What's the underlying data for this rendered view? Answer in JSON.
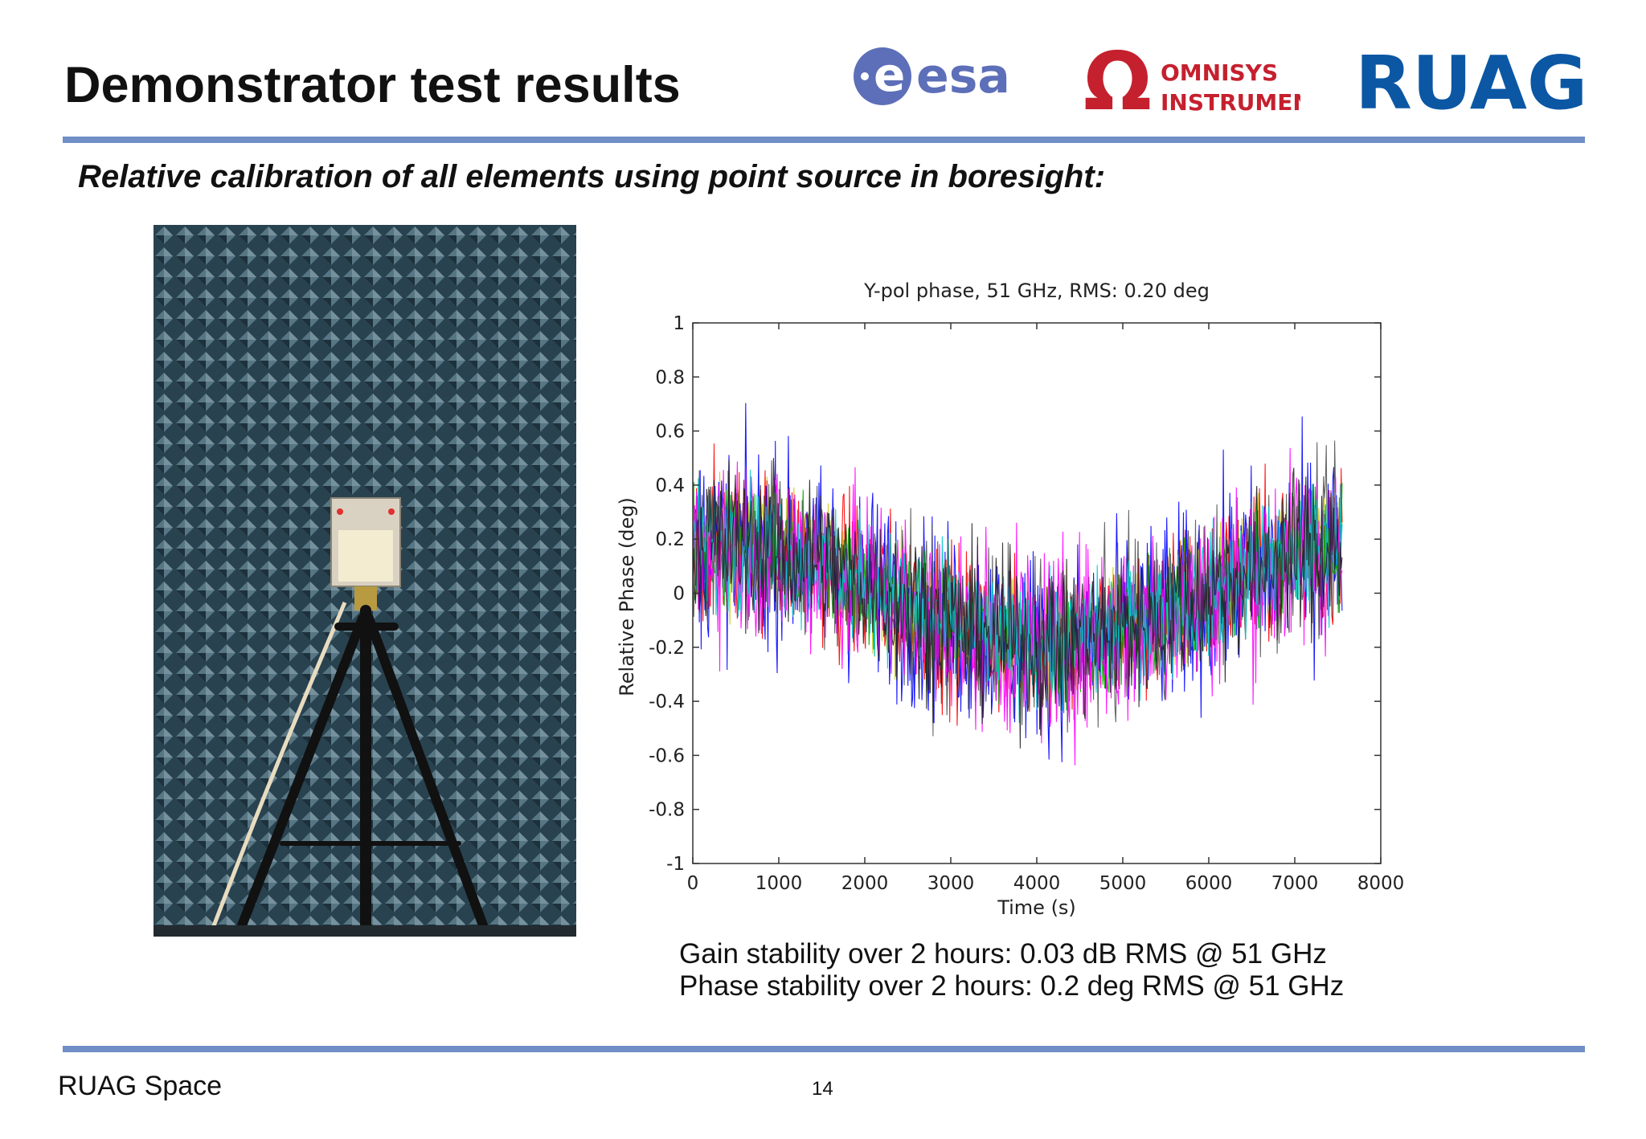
{
  "slide": {
    "title": "Demonstrator test results",
    "subtitle": "Relative calibration of all elements using point source in boresight:",
    "stats": [
      "Gain stability over 2 hours: 0.03 dB RMS @ 51 GHz",
      "Phase stability over 2 hours: 0.2 deg RMS @ 51 GHz"
    ],
    "footer": "RUAG Space",
    "page_number": "14"
  },
  "logos": {
    "esa": "esa",
    "omnisys_line1": "OMNISYS",
    "omnisys_line2": "INSTRUMENTS",
    "ruag": "RUAG"
  },
  "colors": {
    "rule": "#6f8fc6",
    "esa": "#5d6fb8",
    "omnisys": "#c5202e",
    "ruag": "#0b57a4"
  },
  "chart_data": {
    "type": "line",
    "title": "Y-pol phase, 51 GHz, RMS: 0.20 deg",
    "xlabel": "Time (s)",
    "ylabel": "Relative Phase (deg)",
    "xlim": [
      0,
      8000
    ],
    "ylim": [
      -1,
      1
    ],
    "xticks": [
      "0",
      "1000",
      "2000",
      "3000",
      "4000",
      "5000",
      "6000",
      "7000",
      "8000"
    ],
    "yticks": [
      "1",
      "0.8",
      "0.6",
      "0.4",
      "0.2",
      "0",
      "-0.2",
      "-0.4",
      "-0.6",
      "-0.8",
      "-1"
    ],
    "x_end": 7550,
    "rms_deg": 0.2,
    "series_colors": [
      "#cccc1a",
      "#ff0000",
      "#0000ff",
      "#00aa00",
      "#555555",
      "#ff00ff",
      "#00cccc",
      "#222222"
    ],
    "grid": false
  }
}
